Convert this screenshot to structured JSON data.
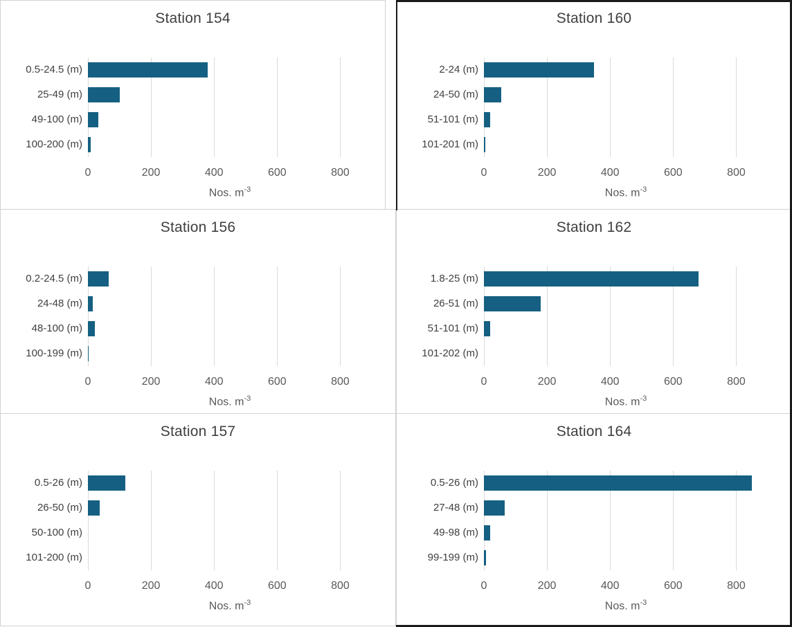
{
  "styles": {
    "bar_color": "#156082",
    "gridline_color": "#D9D9D9",
    "panel_border_color": "#D2D2D2",
    "outer_border_color": "#1A1A1A",
    "title_color": "#3F3F3F",
    "category_label_color": "#404040",
    "tick_label_color": "#595959"
  },
  "chart_data": [
    {
      "type": "bar",
      "orientation": "horizontal",
      "title": "Station 154",
      "categories": [
        "0.5-24.5 (m)",
        "25-49 (m)",
        "49-100 (m)",
        "100-200 (m)"
      ],
      "values": [
        380,
        100,
        33,
        8
      ],
      "xlabel": "Nos. m",
      "xlabel_sup": "-3",
      "xlim": [
        0,
        900
      ],
      "xticks": [
        0,
        200,
        400,
        600,
        800
      ],
      "grid": true,
      "legend": false
    },
    {
      "type": "bar",
      "orientation": "horizontal",
      "title": "Station 160",
      "categories": [
        "2-24 (m)",
        "24-50 (m)",
        "51-101 (m)",
        "101-201 (m)"
      ],
      "values": [
        350,
        55,
        20,
        5
      ],
      "xlabel": "Nos. m",
      "xlabel_sup": "-3",
      "xlim": [
        0,
        900
      ],
      "xticks": [
        0,
        200,
        400,
        600,
        800
      ],
      "grid": true,
      "legend": false
    },
    {
      "type": "bar",
      "orientation": "horizontal",
      "title": "Station 156",
      "categories": [
        "0.2-24.5 (m)",
        "24-48 (m)",
        "48-100 (m)",
        "100-199 (m)"
      ],
      "values": [
        65,
        16,
        22,
        3
      ],
      "xlabel": "Nos. m",
      "xlabel_sup": "-3",
      "xlim": [
        0,
        900
      ],
      "xticks": [
        0,
        200,
        400,
        600,
        800
      ],
      "grid": true,
      "legend": false
    },
    {
      "type": "bar",
      "orientation": "horizontal",
      "title": "Station 162",
      "categories": [
        "1.8-25 (m)",
        "26-51 (m)",
        "51-101 (m)",
        "101-202 (m)"
      ],
      "values": [
        680,
        180,
        20,
        0
      ],
      "xlabel": "Nos. m",
      "xlabel_sup": "-3",
      "xlim": [
        0,
        900
      ],
      "xticks": [
        0,
        200,
        400,
        600,
        800
      ],
      "grid": true,
      "legend": false
    },
    {
      "type": "bar",
      "orientation": "horizontal",
      "title": "Station 157",
      "categories": [
        "0.5-26 (m)",
        "26-50 (m)",
        "50-100 (m)",
        "101-200 (m)"
      ],
      "values": [
        118,
        38,
        0,
        0
      ],
      "xlabel": "Nos. m",
      "xlabel_sup": "-3",
      "xlim": [
        0,
        900
      ],
      "xticks": [
        0,
        200,
        400,
        600,
        800
      ],
      "grid": true,
      "legend": false
    },
    {
      "type": "bar",
      "orientation": "horizontal",
      "title": "Station 164",
      "categories": [
        "0.5-26 (m)",
        "27-48 (m)",
        "49-98 (m)",
        "99-199 (m)"
      ],
      "values": [
        850,
        65,
        20,
        6
      ],
      "xlabel": "Nos. m",
      "xlabel_sup": "-3",
      "xlim": [
        0,
        900
      ],
      "xticks": [
        0,
        200,
        400,
        600,
        800
      ],
      "grid": true,
      "legend": false
    }
  ]
}
